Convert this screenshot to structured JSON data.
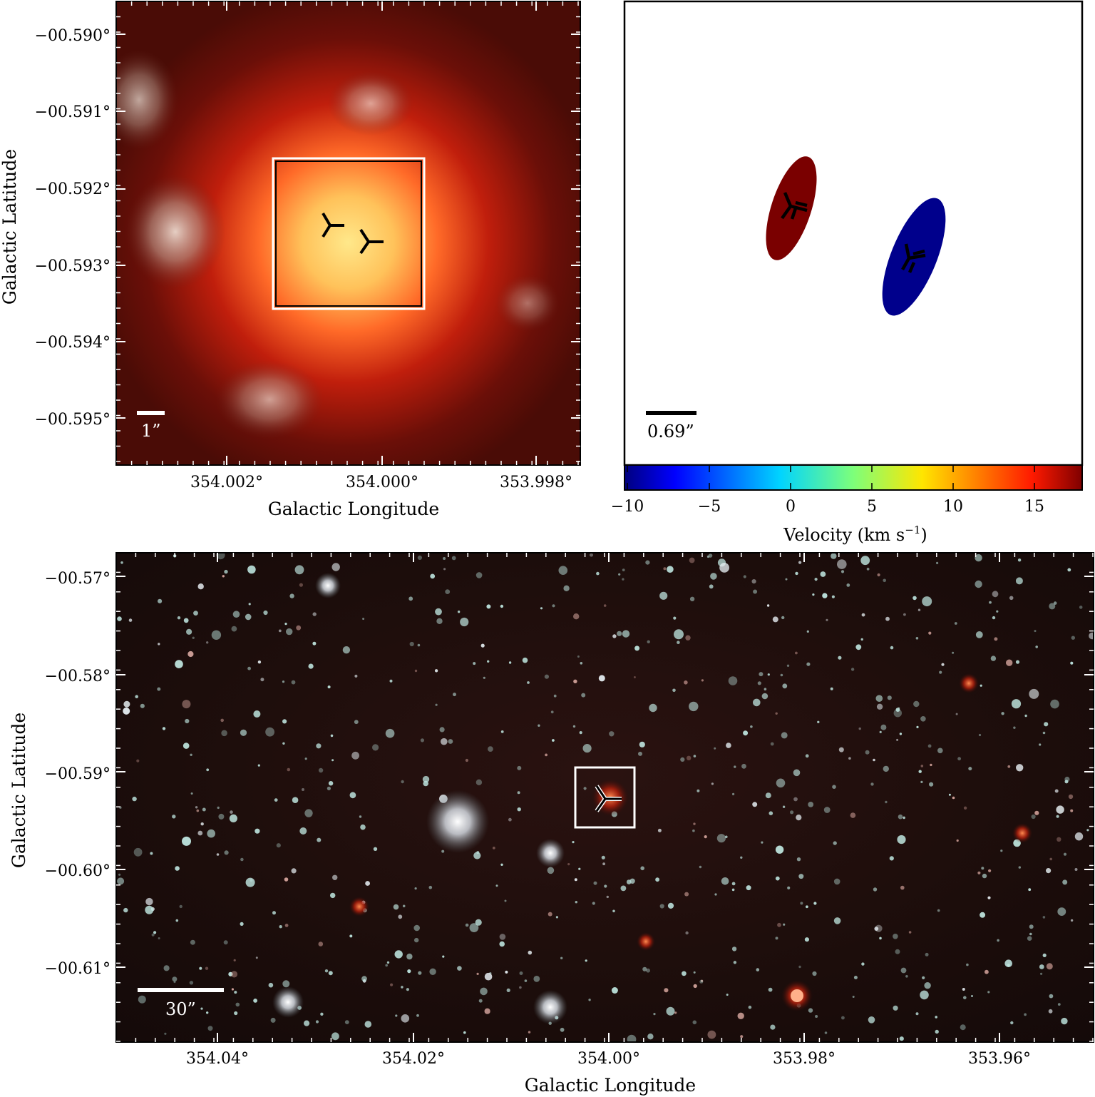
{
  "panels": {
    "zoom": {
      "ylabel": "Galactic Latitude",
      "xlabel": "Galactic Longitude",
      "yticks": [
        "−00.590°",
        "−00.591°",
        "−00.592°",
        "−00.593°",
        "−00.594°",
        "−00.595°"
      ],
      "xticks": [
        "354.002°",
        "354.000°",
        "353.998°"
      ],
      "scalebar": "1”"
    },
    "velocity": {
      "scalebar": "0.69”",
      "colorbar_label": "Velocity (km s",
      "colorbar_label_exp": "−1",
      "colorbar_label_end": ")",
      "colorbar_ticks": [
        "−10",
        "−5",
        "0",
        "5",
        "10",
        "15"
      ],
      "colorbar_range": [
        -10,
        18
      ],
      "sources": [
        {
          "velocity": 17,
          "color": "#7a0000"
        },
        {
          "velocity": -10,
          "color": "#00008c"
        }
      ]
    },
    "wide": {
      "ylabel": "Galactic Latitude",
      "xlabel": "Galactic Longitude",
      "yticks": [
        "−00.57°",
        "−00.58°",
        "−00.59°",
        "−00.60°",
        "−00.61°"
      ],
      "xticks": [
        "354.04°",
        "354.02°",
        "354.00°",
        "353.98°",
        "353.96°"
      ],
      "scalebar": "30”"
    }
  }
}
